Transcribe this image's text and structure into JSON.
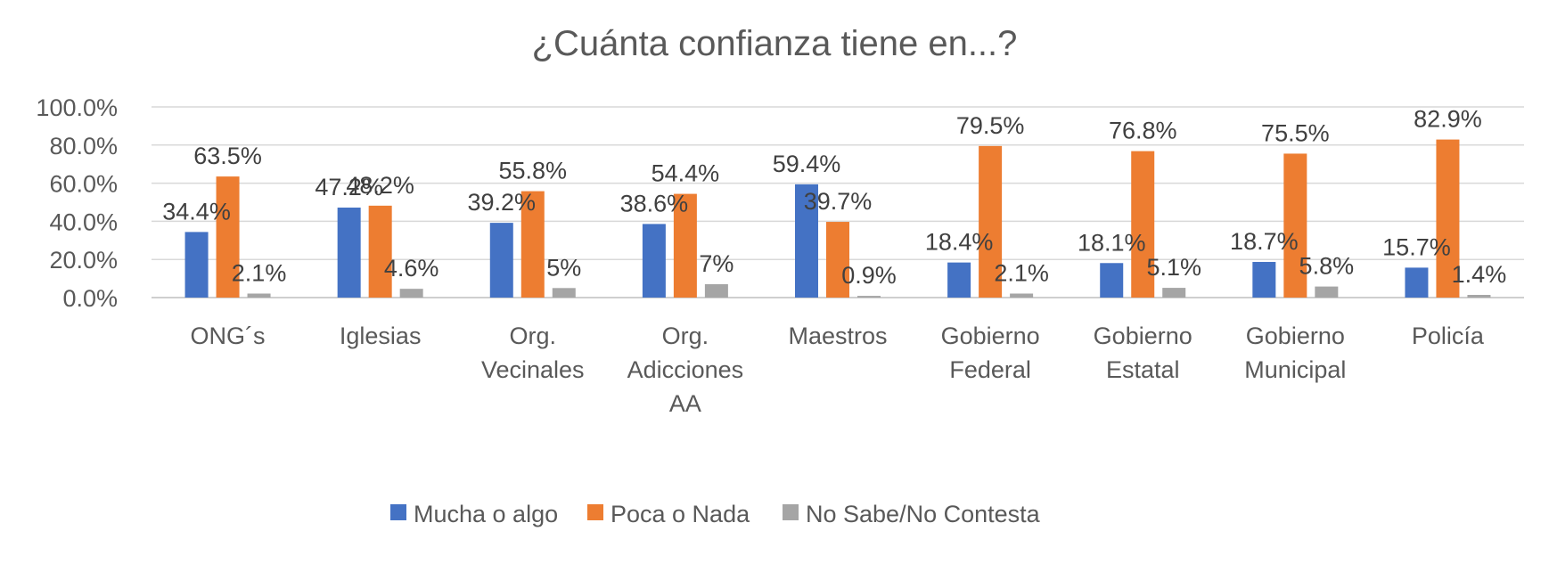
{
  "chart_data": {
    "type": "bar",
    "title": "¿Cuánta confianza tiene en...?",
    "categories": [
      [
        "ONG´s"
      ],
      [
        "Iglesias"
      ],
      [
        "Org.",
        "Vecinales"
      ],
      [
        "Org.",
        "Adicciones",
        "AA"
      ],
      [
        "Maestros"
      ],
      [
        "Gobierno",
        "Federal"
      ],
      [
        "Gobierno",
        "Estatal"
      ],
      [
        "Gobierno",
        "Municipal"
      ],
      [
        "Policía"
      ]
    ],
    "series": [
      {
        "name": "Mucha o algo",
        "color": "#4472C4",
        "values": [
          34.4,
          47.2,
          39.2,
          38.6,
          59.4,
          18.4,
          18.1,
          18.7,
          15.7
        ],
        "labels": [
          "34.4%",
          "47.2%",
          "39.2%",
          "38.6%",
          "59.4%",
          "18.4%",
          "18.1%",
          "18.7%",
          "15.7%"
        ]
      },
      {
        "name": "Poca o Nada",
        "color": "#ED7D31",
        "values": [
          63.5,
          48.2,
          55.8,
          54.4,
          39.7,
          79.5,
          76.8,
          75.5,
          82.9
        ],
        "labels": [
          "63.5%",
          "48.2%",
          "55.8%",
          "54.4%",
          "39.7%",
          "79.5%",
          "76.8%",
          "75.5%",
          "82.9%"
        ]
      },
      {
        "name": "No Sabe/No Contesta",
        "color": "#A5A5A5",
        "values": [
          2.1,
          4.6,
          5,
          7,
          0.9,
          2.1,
          5.1,
          5.8,
          1.4
        ],
        "labels": [
          "2.1%",
          "4.6%",
          "5%",
          "7%",
          "0.9%",
          "2.1%",
          "5.1%",
          "5.8%",
          "1.4%"
        ]
      }
    ],
    "ylim": [
      0,
      100
    ],
    "yticks": [
      0,
      20,
      40,
      60,
      80,
      100
    ],
    "ytick_labels": [
      "0.0%",
      "20.0%",
      "40.0%",
      "60.0%",
      "80.0%",
      "100.0%"
    ],
    "grid": true,
    "legend": "bottom"
  }
}
